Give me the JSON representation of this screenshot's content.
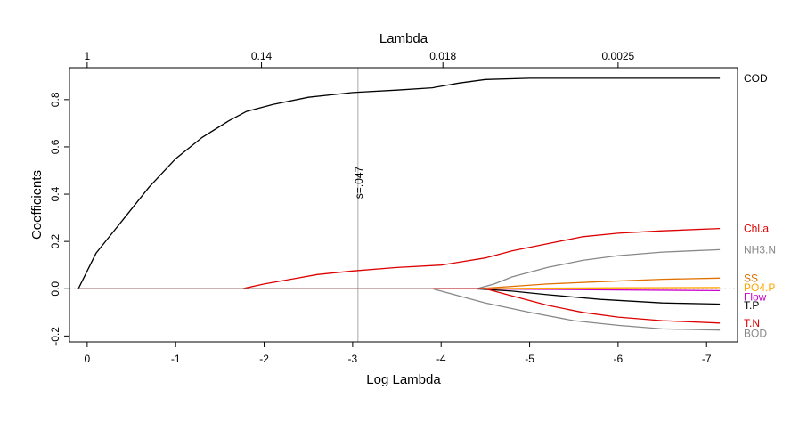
{
  "chart_data": {
    "type": "line",
    "xlabel": "Log Lambda",
    "ylabel": "Coefficients",
    "top_axis_label": "Lambda",
    "xlim": [
      0.2,
      -7.35
    ],
    "ylim": [
      -0.225,
      0.935
    ],
    "x_ticks": [
      {
        "v": 0,
        "label": "0"
      },
      {
        "v": -1,
        "label": "-1"
      },
      {
        "v": -2,
        "label": "-2"
      },
      {
        "v": -3,
        "label": "-3"
      },
      {
        "v": -4,
        "label": "-4"
      },
      {
        "v": -5,
        "label": "-5"
      },
      {
        "v": -6,
        "label": "-6"
      },
      {
        "v": -7,
        "label": "-7"
      }
    ],
    "y_ticks": [
      {
        "v": -0.2,
        "label": "-0.2"
      },
      {
        "v": 0.0,
        "label": "0.0"
      },
      {
        "v": 0.2,
        "label": "0.2"
      },
      {
        "v": 0.4,
        "label": "0.4"
      },
      {
        "v": 0.6,
        "label": "0.6"
      },
      {
        "v": 0.8,
        "label": "0.8"
      }
    ],
    "top_ticks": [
      {
        "v": 0.0,
        "label": "1"
      },
      {
        "v": -1.97,
        "label": "0.14"
      },
      {
        "v": -4.02,
        "label": "0.018"
      },
      {
        "v": -6.0,
        "label": "0.0025"
      }
    ],
    "reference_line": {
      "x": -3.06,
      "label": "s=.047",
      "color": "#aaaaaa"
    },
    "zero_line": {
      "y": 0,
      "color": "#aaaaaa"
    },
    "series": [
      {
        "name": "COD",
        "color": "#000000",
        "x": [
          0.1,
          -0.1,
          -0.4,
          -0.7,
          -1.0,
          -1.3,
          -1.6,
          -1.8,
          -2.1,
          -2.5,
          -3.0,
          -3.5,
          -3.9,
          -4.2,
          -4.5,
          -5.0,
          -6.0,
          -7.15
        ],
        "y": [
          0.0,
          0.15,
          0.29,
          0.43,
          0.55,
          0.64,
          0.71,
          0.75,
          0.78,
          0.81,
          0.83,
          0.84,
          0.85,
          0.87,
          0.885,
          0.89,
          0.89,
          0.89
        ]
      },
      {
        "name": "Chl.a",
        "color": "#dd0000",
        "x": [
          0.1,
          -1.75,
          -2.0,
          -2.3,
          -2.6,
          -3.0,
          -3.5,
          -4.0,
          -4.5,
          -4.8,
          -5.2,
          -5.6,
          -6.0,
          -6.5,
          -7.15
        ],
        "y": [
          0.0,
          0.0,
          0.02,
          0.04,
          0.06,
          0.075,
          0.09,
          0.1,
          0.13,
          0.16,
          0.19,
          0.22,
          0.235,
          0.245,
          0.255
        ]
      },
      {
        "name": "NH3.N",
        "color": "#888888",
        "x": [
          0.1,
          -4.4,
          -4.6,
          -4.8,
          -5.2,
          -5.6,
          -6.0,
          -6.5,
          -7.15
        ],
        "y": [
          0.0,
          0.0,
          0.02,
          0.05,
          0.09,
          0.12,
          0.14,
          0.155,
          0.165
        ]
      },
      {
        "name": "SS",
        "color": "#e07000",
        "x": [
          0.1,
          -4.4,
          -4.8,
          -5.2,
          -5.8,
          -6.5,
          -7.15
        ],
        "y": [
          0.0,
          0.0,
          0.01,
          0.02,
          0.03,
          0.04,
          0.045
        ]
      },
      {
        "name": "PO4.P",
        "color": "#ffa500",
        "x": [
          0.1,
          -4.4,
          -5.0,
          -6.0,
          -7.15
        ],
        "y": [
          0.0,
          0.0,
          0.002,
          0.004,
          0.005
        ]
      },
      {
        "name": "Flow",
        "color": "#cc00cc",
        "x": [
          0.1,
          -4.4,
          -5.0,
          -6.0,
          -7.15
        ],
        "y": [
          0.0,
          0.0,
          -0.002,
          -0.005,
          -0.008
        ]
      },
      {
        "name": "T.P",
        "color": "#000000",
        "x": [
          0.1,
          -4.4,
          -4.8,
          -5.2,
          -5.8,
          -6.5,
          -7.15
        ],
        "y": [
          0.0,
          0.0,
          -0.01,
          -0.025,
          -0.045,
          -0.06,
          -0.065
        ]
      },
      {
        "name": "T.N",
        "color": "#dd0000",
        "x": [
          0.1,
          -4.5,
          -4.8,
          -5.2,
          -5.6,
          -6.0,
          -6.5,
          -7.15
        ],
        "y": [
          0.0,
          0.0,
          -0.03,
          -0.07,
          -0.1,
          -0.12,
          -0.135,
          -0.145
        ]
      },
      {
        "name": "BOD",
        "color": "#888888",
        "x": [
          0.1,
          -3.9,
          -4.2,
          -4.5,
          -5.0,
          -5.5,
          -6.0,
          -6.5,
          -7.15
        ],
        "y": [
          0.0,
          0.0,
          -0.03,
          -0.06,
          -0.1,
          -0.135,
          -0.155,
          -0.17,
          -0.175
        ]
      }
    ],
    "end_labels": [
      {
        "name": "COD",
        "color": "#000000",
        "y": 0.89
      },
      {
        "name": "Chl.a",
        "color": "#dd0000",
        "y": 0.255
      },
      {
        "name": "NH3.N",
        "color": "#888888",
        "y": 0.165
      },
      {
        "name": "SS",
        "color": "#e07000",
        "y": 0.045
      },
      {
        "name": "PO4.P",
        "color": "#ffa500",
        "y": 0.005
      },
      {
        "name": "Flow",
        "color": "#cc00cc",
        "y": -0.035
      },
      {
        "name": "T.P",
        "color": "#000000",
        "y": -0.07
      },
      {
        "name": "T.N",
        "color": "#dd0000",
        "y": -0.145
      },
      {
        "name": "BOD",
        "color": "#888888",
        "y": -0.19
      }
    ]
  }
}
